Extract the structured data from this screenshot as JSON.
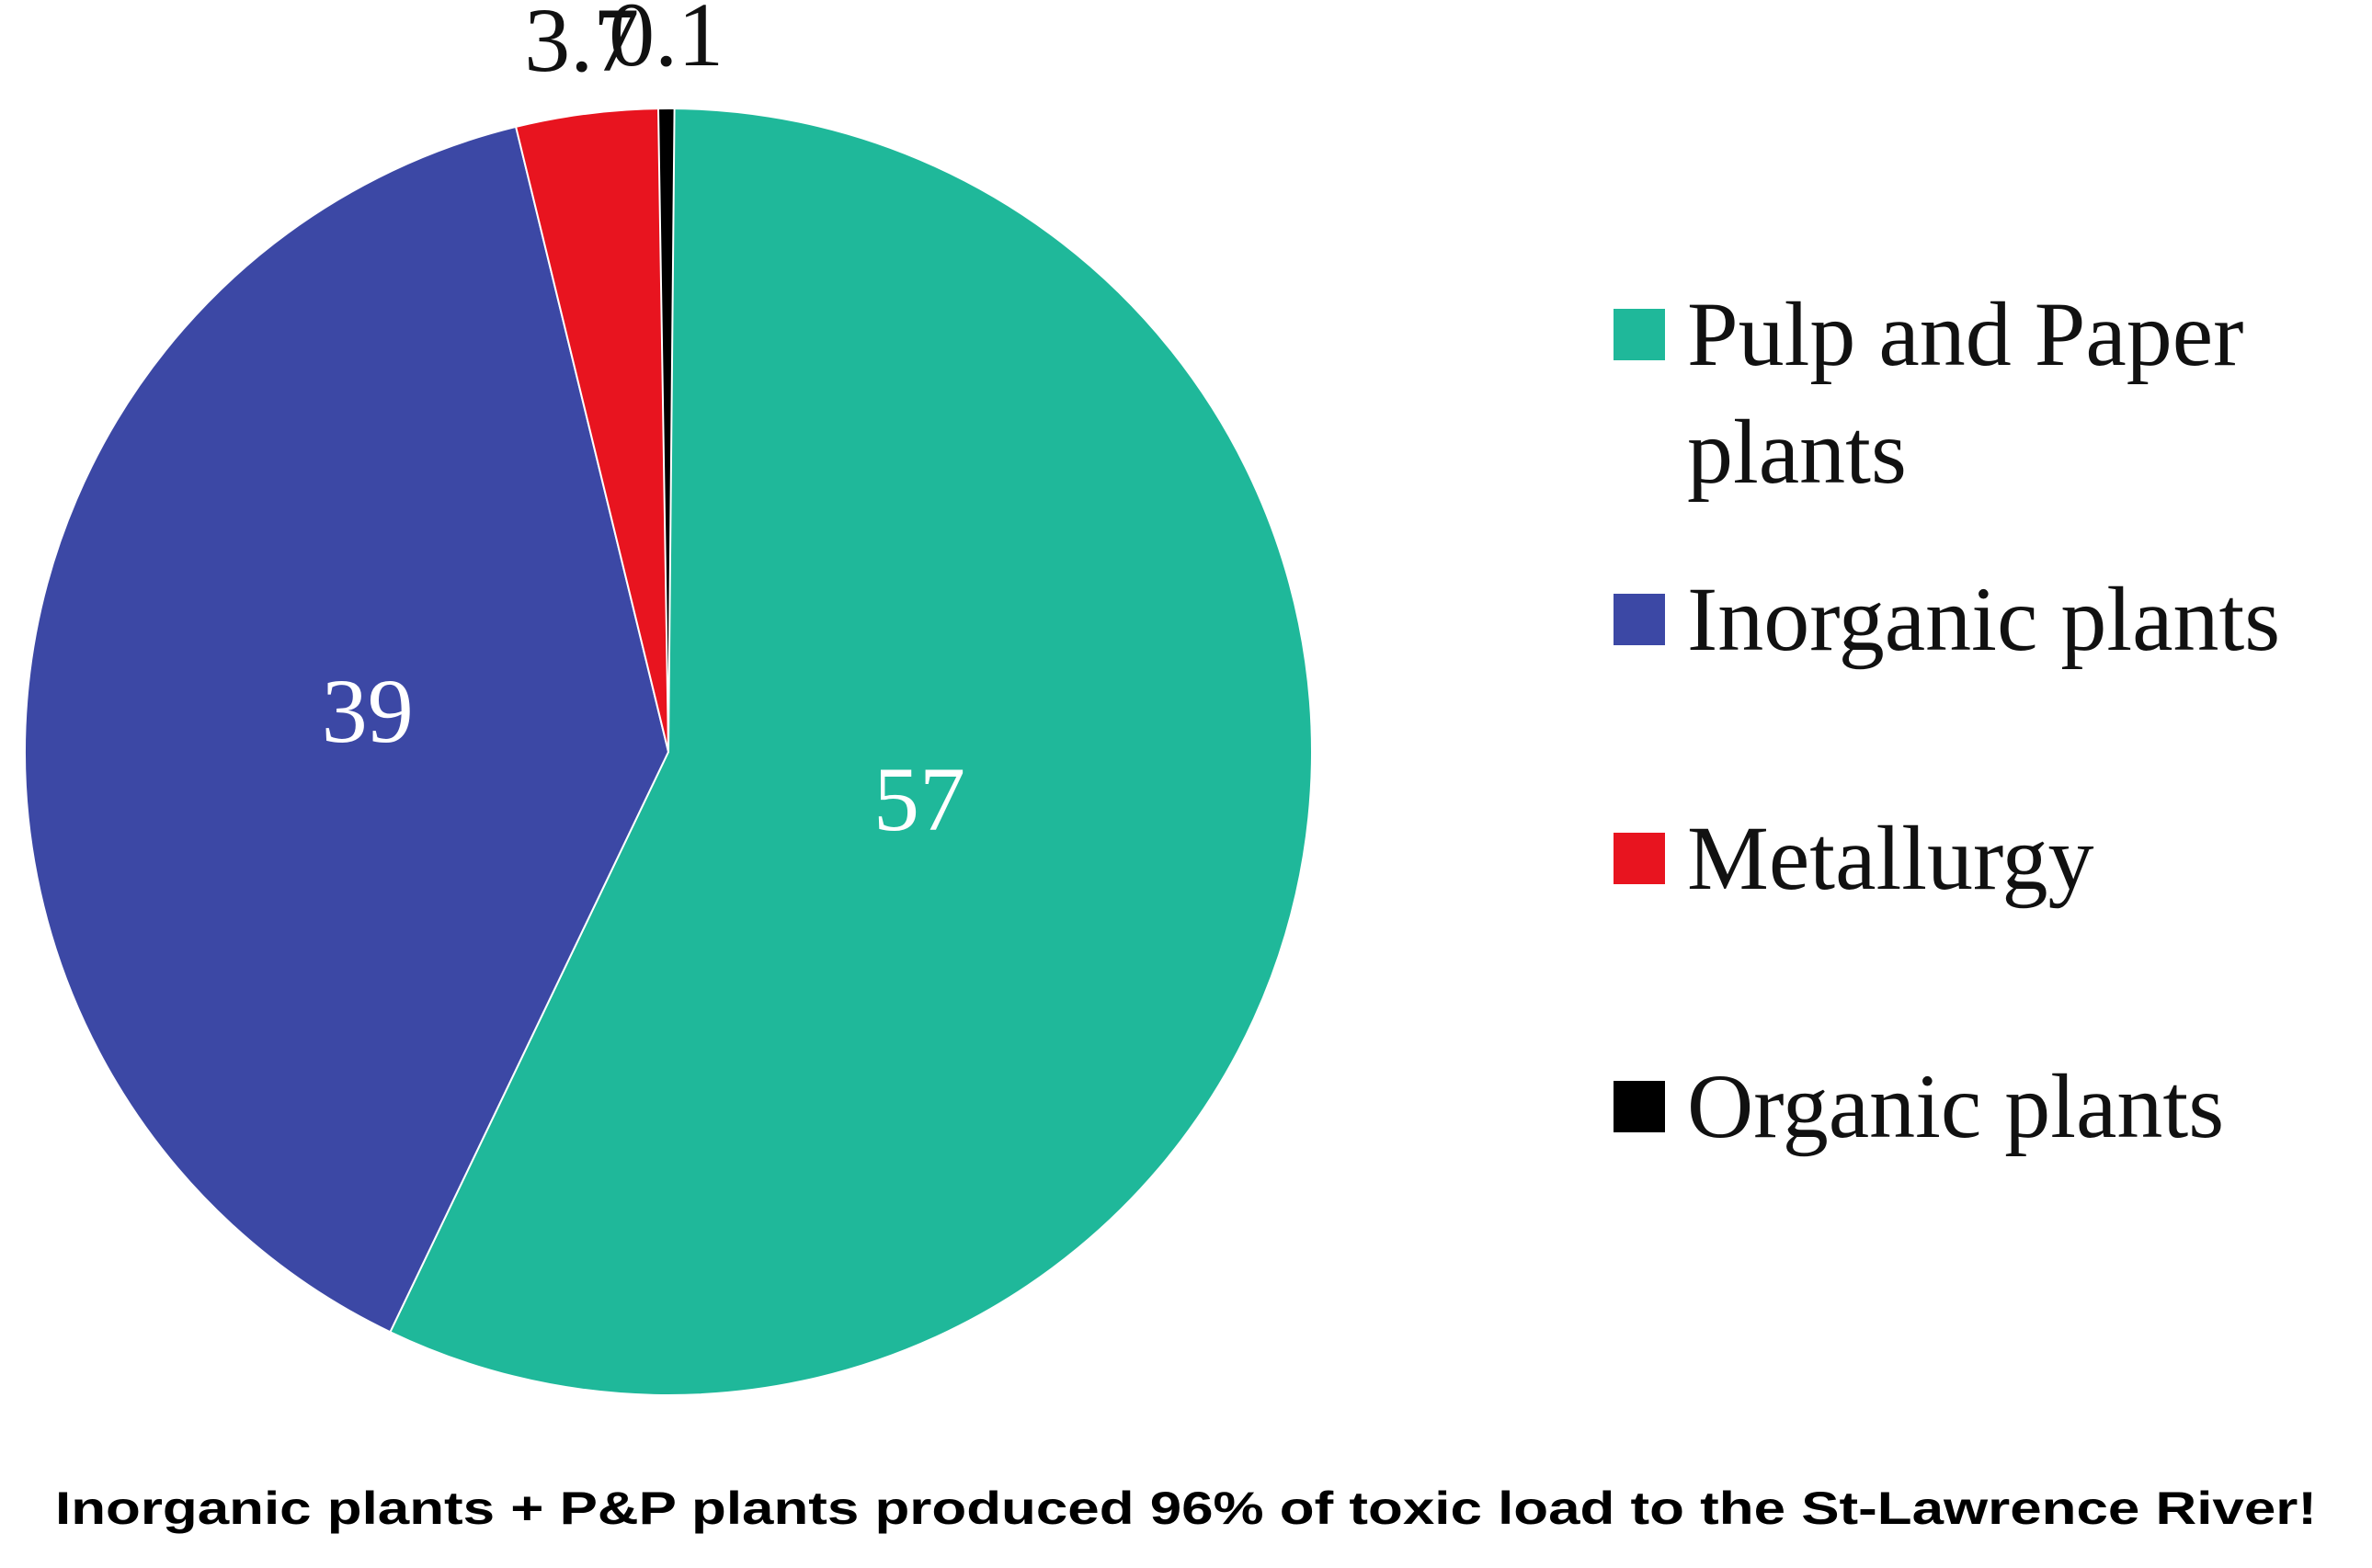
{
  "chart_data": {
    "type": "pie",
    "categories": [
      "Pulp and Paper plants",
      "Inorganic plants",
      "Metallurgy",
      "Organic plants"
    ],
    "values": [
      57,
      39,
      3.7,
      0.1
    ],
    "colors": [
      "#1fb89a",
      "#3c48a5",
      "#e8141f",
      "#000000"
    ],
    "caption": "Inorganic plants + P&P plants produced 96% of toxic load to the St-Lawrence River!"
  }
}
